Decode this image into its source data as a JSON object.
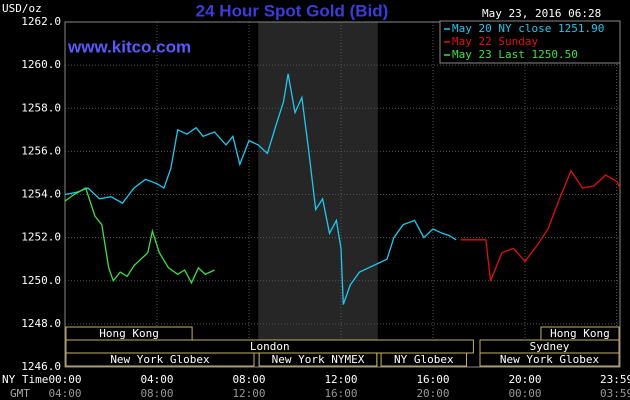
{
  "chart_data": {
    "type": "line",
    "title": "24 Hour Spot Gold (Bid)",
    "watermark": "www.kitco.com",
    "y_unit": "USD/oz",
    "timestamp": "May 23, 2016 06:28",
    "x_label": "NY Time",
    "x2_label": "GMT",
    "xlim": [
      0,
      24.13
    ],
    "ylim": [
      1246,
      1262
    ],
    "yticks": [
      {
        "value": 1246,
        "label": "1246.0"
      },
      {
        "value": 1248,
        "label": "1248.0"
      },
      {
        "value": 1250,
        "label": "1250.0"
      },
      {
        "value": 1252,
        "label": "1252.0"
      },
      {
        "value": 1254,
        "label": "1254.0"
      },
      {
        "value": 1256,
        "label": "1256.0"
      },
      {
        "value": 1258,
        "label": "1258.0"
      },
      {
        "value": 1260,
        "label": "1260.0"
      },
      {
        "value": 1262,
        "label": "1262.0"
      }
    ],
    "xticks": [
      {
        "value": 0,
        "label": "00:00"
      },
      {
        "value": 4,
        "label": "04:00"
      },
      {
        "value": 8,
        "label": "08:00"
      },
      {
        "value": 12,
        "label": "12:00"
      },
      {
        "value": 16,
        "label": "16:00"
      },
      {
        "value": 20,
        "label": "20:00"
      },
      {
        "value": 23.98,
        "label": "23:59"
      }
    ],
    "x2ticks": [
      {
        "value": 0,
        "label": "04:00"
      },
      {
        "value": 4,
        "label": "08:00"
      },
      {
        "value": 8,
        "label": "12:00"
      },
      {
        "value": 12,
        "label": "16:00"
      },
      {
        "value": 16,
        "label": "20:00"
      },
      {
        "value": 20,
        "label": "00:00"
      },
      {
        "value": 23.98,
        "label": "03:59"
      }
    ],
    "grid": true,
    "shaded_range": [
      8.4,
      13.6
    ],
    "sessions": [
      {
        "label": "Hong Kong",
        "start": 0,
        "end": 5.57
      },
      {
        "label": "London",
        "start": 0,
        "end": 17.8
      },
      {
        "label": "New York Globex",
        "start": 0,
        "end": 8.26
      },
      {
        "label": "New York NYMEX",
        "start": 8.4,
        "end": 13.6
      },
      {
        "label": "NY Globex",
        "start": 13.7,
        "end": 17.5
      },
      {
        "label": "Hong Kong",
        "start": 20.65,
        "end": 24.13
      },
      {
        "label": "Sydney",
        "start": 18.0,
        "end": 24.13
      },
      {
        "label": "New York Globex",
        "start": 18.0,
        "end": 24.13
      }
    ],
    "series": [
      {
        "name": "May 20 NY close 1251.90",
        "color": "#1ec8f0",
        "x": [
          0,
          0.5,
          1,
          1.5,
          2,
          2.5,
          3,
          3.5,
          4,
          4.3,
          4.6,
          4.9,
          5.3,
          5.7,
          6,
          6.5,
          7,
          7.3,
          7.6,
          8,
          8.4,
          8.8,
          9.2,
          9.5,
          9.7,
          10,
          10.3,
          10.6,
          10.9,
          11.2,
          11.5,
          11.8,
          12,
          12.1,
          12.4,
          12.8,
          13.2,
          13.6,
          14,
          14.3,
          14.7,
          15.2,
          15.6,
          16,
          16.4,
          16.7,
          17
        ],
        "values": [
          1254.0,
          1254.1,
          1254.3,
          1253.8,
          1253.9,
          1253.6,
          1254.3,
          1254.7,
          1254.5,
          1254.3,
          1255.2,
          1257.0,
          1256.8,
          1257.1,
          1256.7,
          1256.9,
          1256.3,
          1256.7,
          1255.4,
          1256.5,
          1256.3,
          1255.9,
          1257.3,
          1258.3,
          1259.6,
          1257.8,
          1258.5,
          1256.0,
          1253.3,
          1253.8,
          1252.2,
          1252.8,
          1251.5,
          1248.9,
          1249.8,
          1250.4,
          1250.6,
          1250.8,
          1251.0,
          1252.0,
          1252.6,
          1252.8,
          1252.0,
          1252.4,
          1252.2,
          1252.1,
          1251.9
        ]
      },
      {
        "name": "May 22 Sunday",
        "color": "#e01010",
        "x": [
          17.2,
          18.3,
          18.5,
          19,
          19.5,
          20,
          20.5,
          21,
          21.5,
          22,
          22.5,
          23,
          23.5,
          24,
          24.13
        ],
        "values": [
          1251.9,
          1251.9,
          1250.0,
          1251.3,
          1251.5,
          1250.9,
          1251.6,
          1252.4,
          1253.8,
          1255.1,
          1254.3,
          1254.4,
          1254.9,
          1254.6,
          1254.3
        ]
      },
      {
        "name": "May 23 Last 1250.50",
        "color": "#40e040",
        "x": [
          0,
          0.4,
          0.9,
          1.3,
          1.6,
          1.9,
          2.1,
          2.4,
          2.7,
          3.0,
          3.3,
          3.6,
          3.8,
          4.1,
          4.5,
          4.9,
          5.2,
          5.5,
          5.8,
          6.1,
          6.5
        ],
        "values": [
          1253.7,
          1254.0,
          1254.3,
          1253.0,
          1252.6,
          1250.6,
          1250.0,
          1250.4,
          1250.2,
          1250.7,
          1251.0,
          1251.3,
          1252.3,
          1251.3,
          1250.6,
          1250.3,
          1250.5,
          1249.9,
          1250.6,
          1250.3,
          1250.5
        ]
      }
    ]
  }
}
